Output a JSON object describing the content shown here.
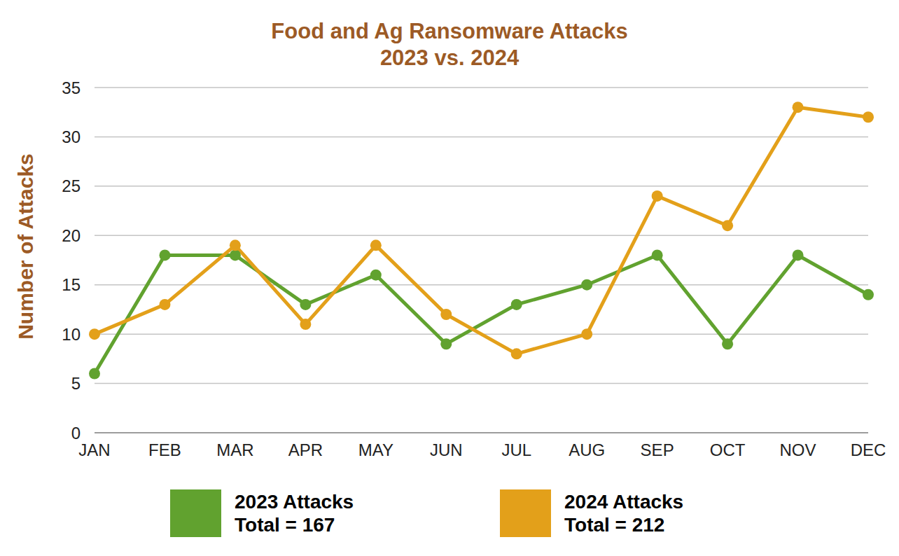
{
  "chart_data": {
    "type": "line",
    "title": "Food and Ag Ransomware Attacks",
    "subtitle": "2023 vs. 2024",
    "y_label": "Number of Attacks",
    "categories": [
      "JAN",
      "FEB",
      "MAR",
      "APR",
      "MAY",
      "JUN",
      "JUL",
      "AUG",
      "SEP",
      "OCT",
      "NOV",
      "DEC"
    ],
    "series": [
      {
        "name": "2023 Attacks",
        "total_label": "Total = 167",
        "color": "#61a22f",
        "values": [
          6,
          18,
          18,
          13,
          16,
          9,
          13,
          15,
          18,
          9,
          18,
          14
        ]
      },
      {
        "name": "2024 Attacks",
        "total_label": "Total = 212",
        "color": "#e3a01a",
        "values": [
          10,
          13,
          19,
          11,
          19,
          12,
          8,
          10,
          24,
          21,
          33,
          32
        ]
      }
    ],
    "ylim": [
      0,
      35
    ],
    "yticks": [
      0,
      5,
      10,
      15,
      20,
      25,
      30,
      35
    ],
    "grid": true,
    "legend": "bottom",
    "marker": "circle"
  }
}
